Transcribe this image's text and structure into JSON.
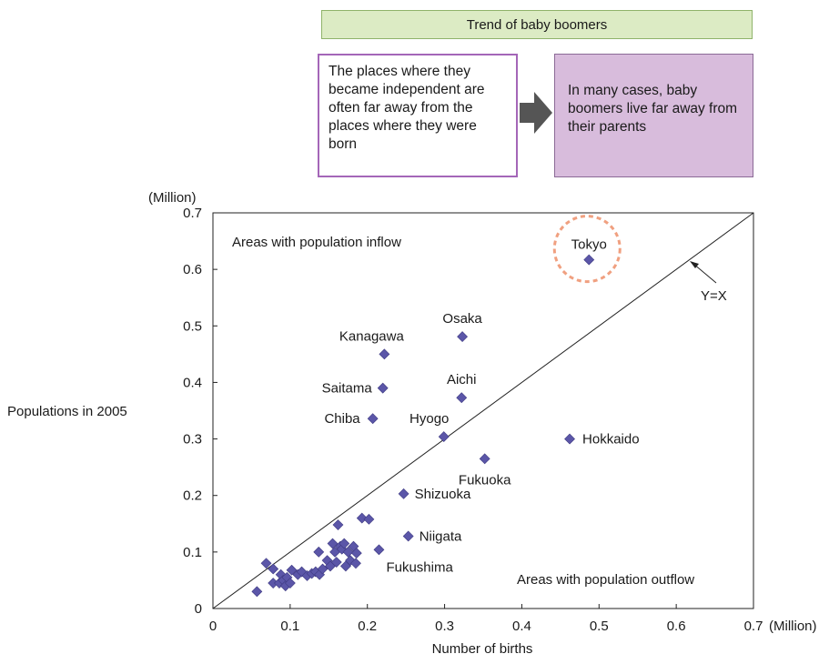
{
  "header": {
    "banner": "Trend of baby boomers",
    "left_box": "The places where they became independent are often far away from the places where they were born",
    "right_box": "In many cases, baby boomers live far away from their parents"
  },
  "colors": {
    "banner_bg": "#dcebc4",
    "left_box_border": "#a466b8",
    "right_box_bg": "#d8bcdc",
    "arrow": "#555555",
    "marker": "#5b56a8",
    "highlight_circle": "#f0a080"
  },
  "chart_data": {
    "type": "scatter",
    "xlabel": "Number of births",
    "ylabel": "Populations in 2005",
    "x_unit": "(Million)",
    "y_unit": "(Million)",
    "xlim": [
      0,
      0.7
    ],
    "ylim": [
      0,
      0.7
    ],
    "xticks": [
      "0",
      "0.1",
      "0.2",
      "0.3",
      "0.4",
      "0.5",
      "0.6",
      "0.7"
    ],
    "yticks": [
      "0",
      "0.1",
      "0.2",
      "0.3",
      "0.4",
      "0.5",
      "0.6",
      "0.7"
    ],
    "grid": false,
    "reference_line": {
      "label": "Y=X"
    },
    "annotations": {
      "inflow": "Areas with population inflow",
      "outflow": "Areas with population outflow"
    },
    "highlight": "Tokyo",
    "labeled_points": [
      {
        "name": "Tokyo",
        "x": 0.487,
        "y": 0.617
      },
      {
        "name": "Osaka",
        "x": 0.323,
        "y": 0.481
      },
      {
        "name": "Kanagawa",
        "x": 0.222,
        "y": 0.45
      },
      {
        "name": "Saitama",
        "x": 0.22,
        "y": 0.39
      },
      {
        "name": "Aichi",
        "x": 0.322,
        "y": 0.373
      },
      {
        "name": "Chiba",
        "x": 0.207,
        "y": 0.336
      },
      {
        "name": "Hyogo",
        "x": 0.299,
        "y": 0.304
      },
      {
        "name": "Hokkaido",
        "x": 0.462,
        "y": 0.3
      },
      {
        "name": "Fukuoka",
        "x": 0.352,
        "y": 0.265
      },
      {
        "name": "Shizuoka",
        "x": 0.247,
        "y": 0.203
      },
      {
        "name": "Niigata",
        "x": 0.253,
        "y": 0.128
      },
      {
        "name": "Fukushima",
        "x": 0.215,
        "y": 0.104
      }
    ],
    "other_points": [
      [
        0.057,
        0.03
      ],
      [
        0.069,
        0.08
      ],
      [
        0.078,
        0.07
      ],
      [
        0.078,
        0.045
      ],
      [
        0.086,
        0.045
      ],
      [
        0.088,
        0.06
      ],
      [
        0.091,
        0.05
      ],
      [
        0.094,
        0.04
      ],
      [
        0.096,
        0.055
      ],
      [
        0.1,
        0.045
      ],
      [
        0.102,
        0.068
      ],
      [
        0.11,
        0.06
      ],
      [
        0.115,
        0.065
      ],
      [
        0.122,
        0.058
      ],
      [
        0.128,
        0.062
      ],
      [
        0.133,
        0.065
      ],
      [
        0.137,
        0.1
      ],
      [
        0.138,
        0.06
      ],
      [
        0.142,
        0.07
      ],
      [
        0.148,
        0.085
      ],
      [
        0.152,
        0.075
      ],
      [
        0.155,
        0.115
      ],
      [
        0.158,
        0.1
      ],
      [
        0.16,
        0.082
      ],
      [
        0.162,
        0.148
      ],
      [
        0.165,
        0.11
      ],
      [
        0.167,
        0.105
      ],
      [
        0.17,
        0.115
      ],
      [
        0.172,
        0.075
      ],
      [
        0.175,
        0.1
      ],
      [
        0.178,
        0.085
      ],
      [
        0.182,
        0.11
      ],
      [
        0.185,
        0.08
      ],
      [
        0.186,
        0.098
      ],
      [
        0.193,
        0.16
      ],
      [
        0.202,
        0.158
      ]
    ]
  }
}
